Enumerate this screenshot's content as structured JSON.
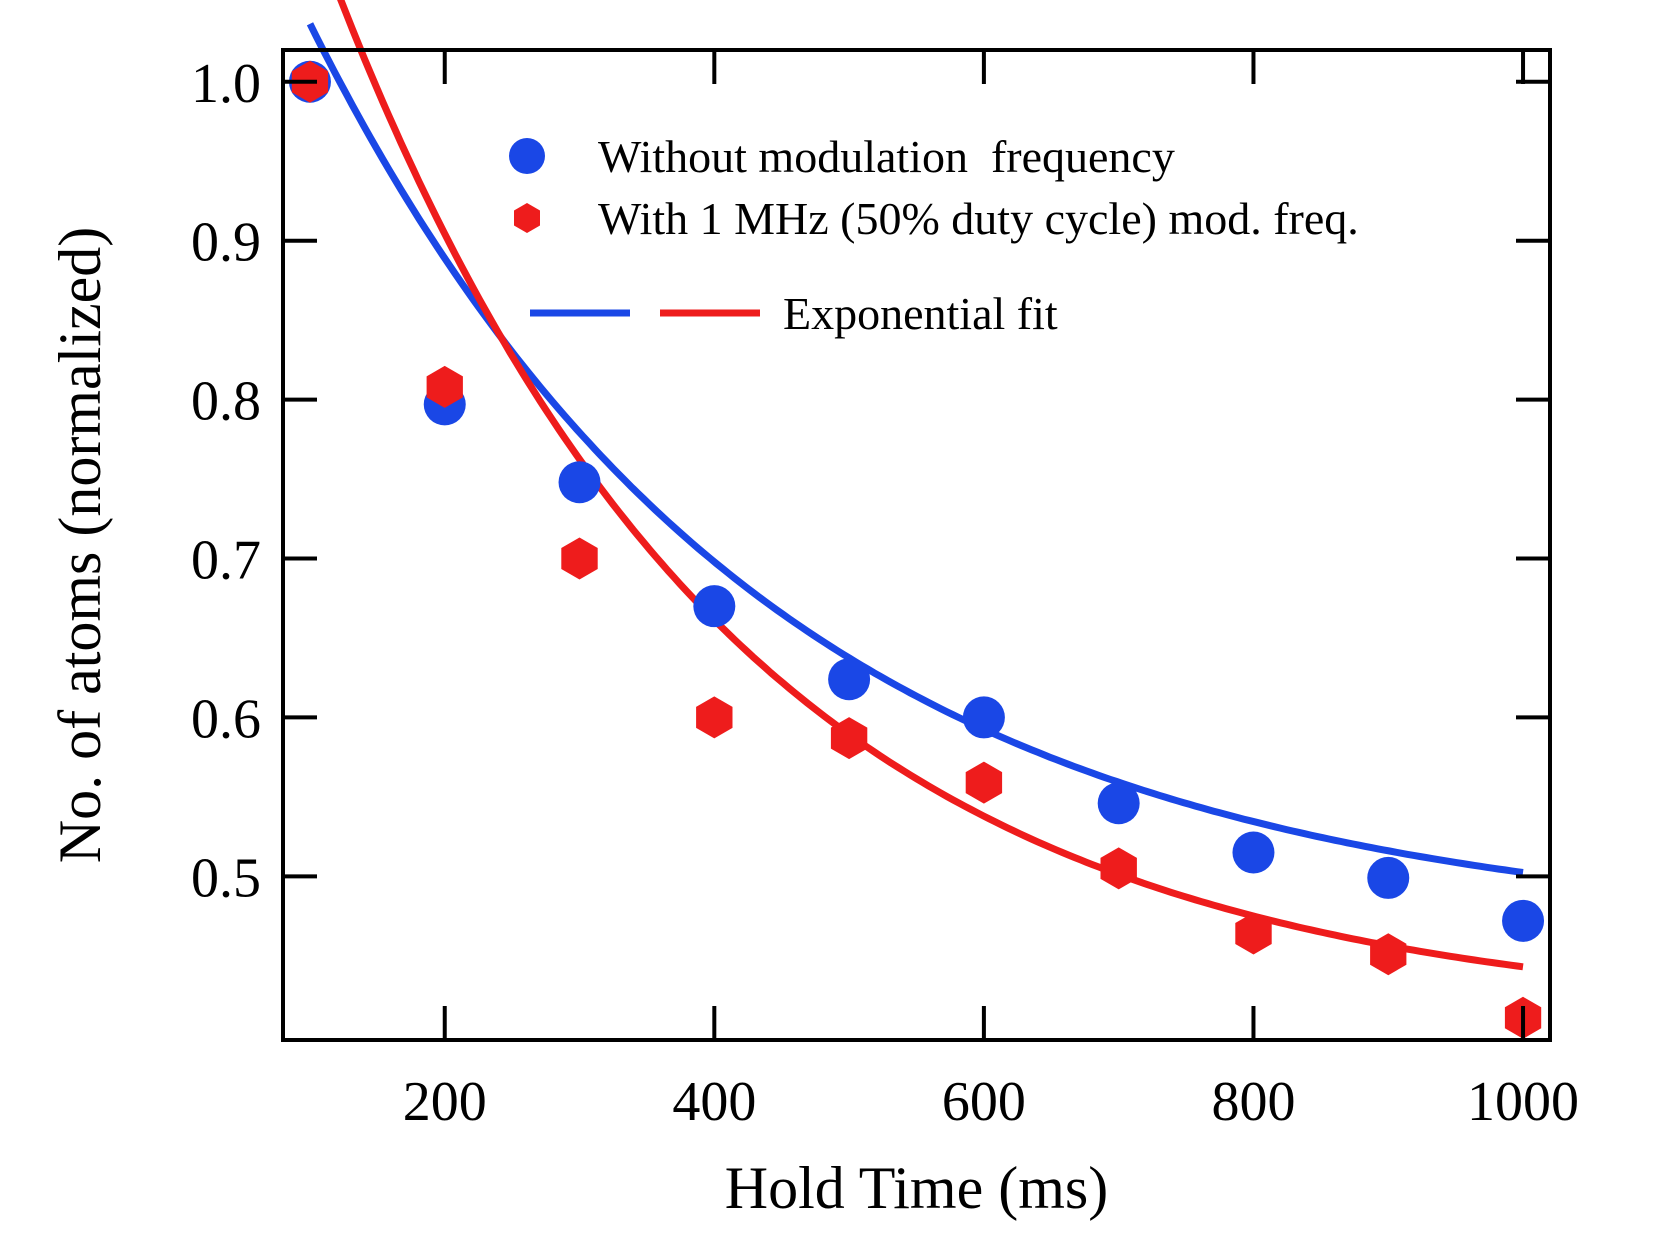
{
  "chart_data": {
    "type": "scatter",
    "title": "",
    "xlabel": "Hold Time (ms)",
    "ylabel": "No. of atoms (normalized)",
    "xlim": [
      80,
      1020
    ],
    "ylim": [
      0.397,
      1.02
    ],
    "xticks": [
      200,
      400,
      600,
      800,
      1000
    ],
    "yticks": [
      0.5,
      0.6,
      0.7,
      0.8,
      0.9,
      1.0
    ],
    "xtick_labels": [
      "200",
      "400",
      "600",
      "800",
      "1000"
    ],
    "ytick_labels": [
      "0.5",
      "0.6",
      "0.7",
      "0.8",
      "0.9",
      "1.0"
    ],
    "grid": false,
    "legend_position": "top-right",
    "series": [
      {
        "name": "Without modulation  frequency",
        "marker": "circle",
        "color": "#1a47e6",
        "x": [
          100,
          200,
          300,
          400,
          500,
          600,
          700,
          800,
          900,
          1000
        ],
        "y": [
          1.0,
          0.797,
          0.748,
          0.67,
          0.624,
          0.6,
          0.546,
          0.515,
          0.499,
          0.472
        ]
      },
      {
        "name": "With 1 MHz (50% duty cycle) mod. freq.",
        "marker": "hexagon",
        "color": "#ee1c1c",
        "x": [
          100,
          200,
          300,
          400,
          500,
          600,
          700,
          800,
          900,
          1000
        ],
        "y": [
          1.0,
          0.808,
          0.7,
          0.6,
          0.587,
          0.559,
          0.505,
          0.464,
          0.451,
          0.411
        ]
      }
    ],
    "fits": [
      {
        "series": "Without modulation  frequency",
        "color": "#1a47e6",
        "model": "exponential",
        "x_range": [
          100,
          1000
        ],
        "A": 0.5735,
        "tau": 336.1,
        "c": 0.463
      },
      {
        "series": "With 1 MHz (50% duty cycle) mod. freq.",
        "color": "#ee1c1c",
        "model": "exponential",
        "x_range": [
          100,
          1000
        ],
        "A": 0.6931,
        "tau": 295.8,
        "c": 0.41
      }
    ],
    "fit_legend_label": "Exponential fit"
  }
}
